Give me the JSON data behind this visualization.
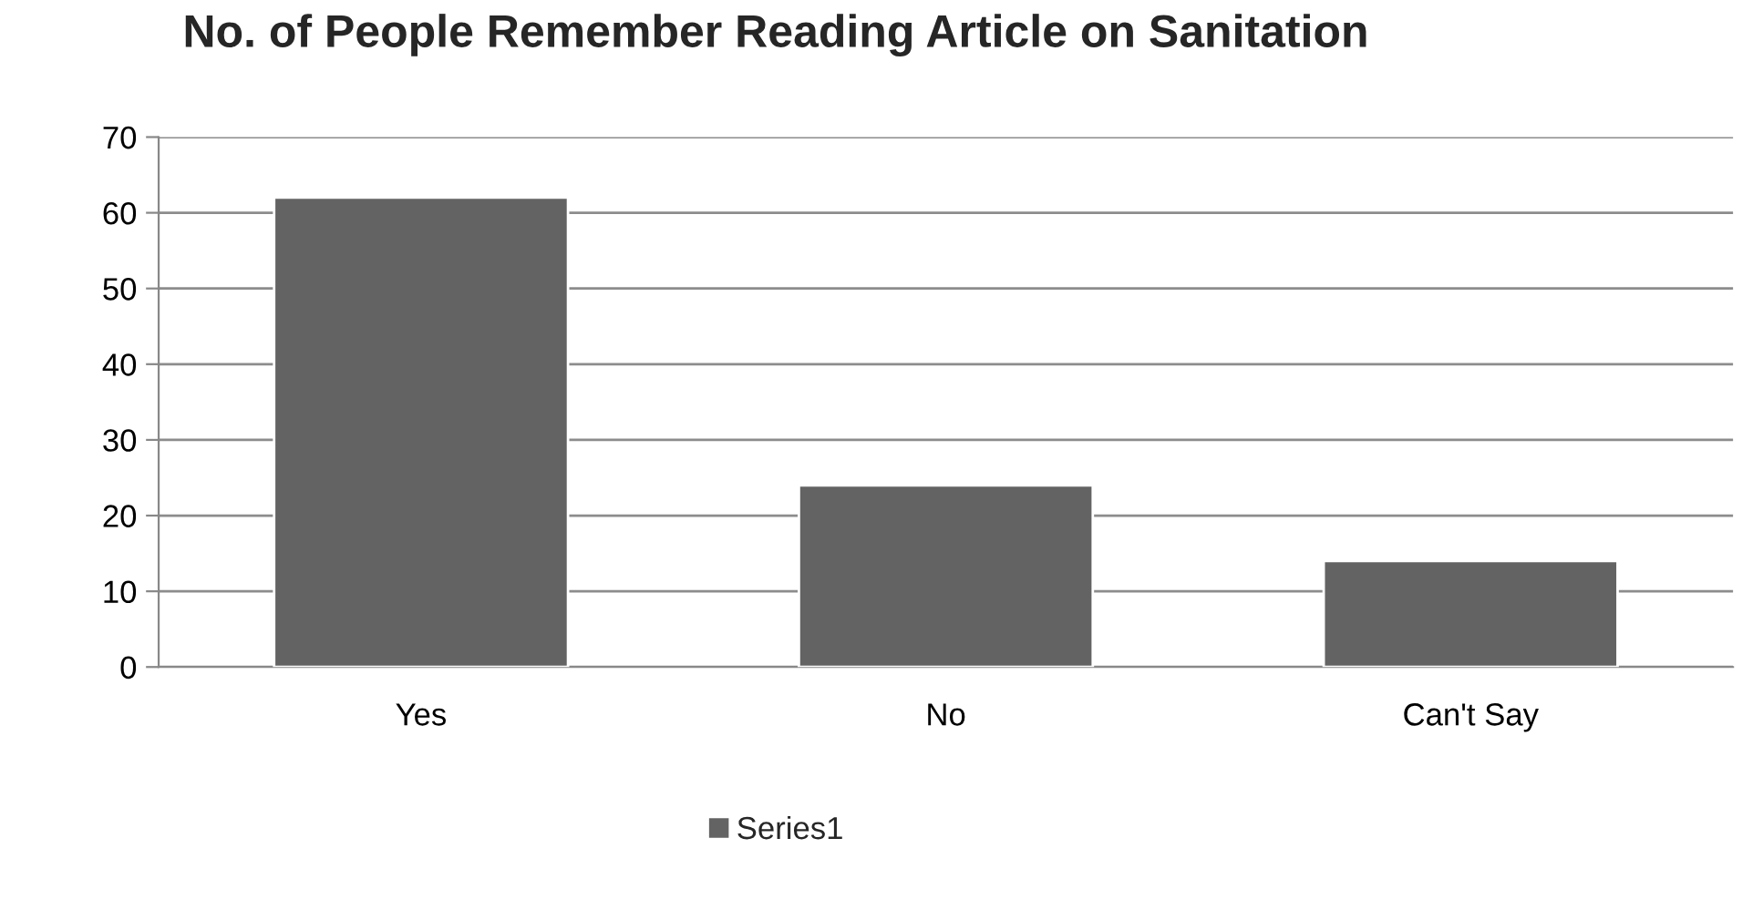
{
  "chart_data": {
    "type": "bar",
    "title": "No. of People Remember Reading Article on Sanitation",
    "categories": [
      "Yes",
      "No",
      "Can't Say"
    ],
    "series": [
      {
        "name": "Series1",
        "color": "#636363",
        "values": [
          62,
          24,
          14
        ]
      }
    ],
    "ylim": [
      0,
      70
    ],
    "yticks": [
      0,
      10,
      20,
      30,
      40,
      50,
      60,
      70
    ],
    "grid": "y",
    "legend": "bottom"
  }
}
